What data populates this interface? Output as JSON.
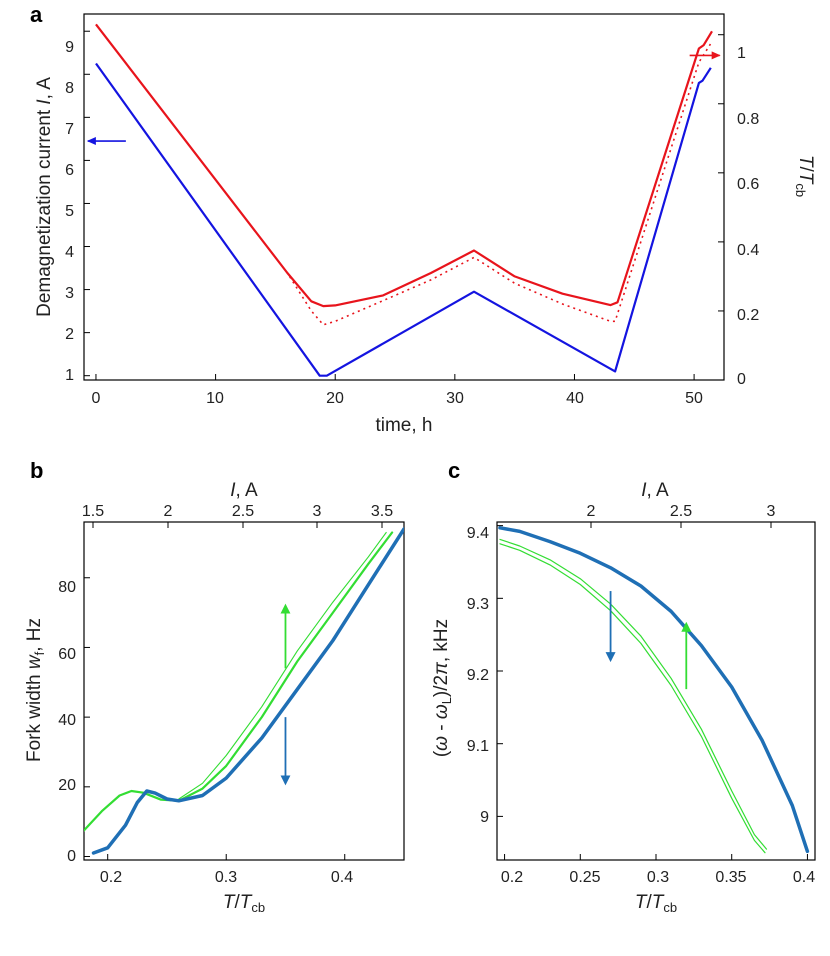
{
  "panels": {
    "a": {
      "letter": "a"
    },
    "b": {
      "letter": "b"
    },
    "c": {
      "letter": "c"
    }
  },
  "colors": {
    "red": "#e8141c",
    "blue": "#1414e0",
    "green": "#33dd33",
    "steel": "#1f6fb5"
  },
  "chart_data": [
    {
      "id": "a",
      "type": "line",
      "xlabel": "time, h",
      "ylabel_left": "Demagnetization current I, A",
      "ylabel_right": "T/Tcb",
      "xlim": [
        -1,
        52.5
      ],
      "ylim_left": [
        0.9,
        9.4
      ],
      "ylim_right": [
        0,
        1.06
      ],
      "x_ticks": [
        "0",
        "10",
        "20",
        "30",
        "40",
        "50"
      ],
      "y_ticks_left": [
        "1",
        "2",
        "3",
        "4",
        "5",
        "6",
        "7",
        "8",
        "9"
      ],
      "y_ticks_right": [
        "0",
        "0.2",
        "0.4",
        "0.6",
        "0.8",
        "1"
      ],
      "series": [
        {
          "axis": "left",
          "color": "#1414e0",
          "style": "solid",
          "x": [
            0,
            18.7,
            19.3,
            31.6,
            43.4,
            50.4,
            50.7,
            51.4
          ],
          "y": [
            8.25,
            1.0,
            1.0,
            2.95,
            1.1,
            7.8,
            7.85,
            8.15
          ]
        },
        {
          "axis": "right",
          "color": "#e8141c",
          "style": "solid",
          "x": [
            0,
            16,
            18,
            19,
            20,
            24,
            28,
            31.6,
            35,
            39,
            43,
            43.6,
            50.4,
            50.8,
            51.5
          ],
          "y": [
            1.03,
            0.31,
            0.228,
            0.214,
            0.216,
            0.245,
            0.31,
            0.375,
            0.3,
            0.25,
            0.217,
            0.225,
            0.96,
            0.97,
            1.01
          ]
        },
        {
          "axis": "right",
          "color": "#e8141c",
          "style": "dotted",
          "x": [
            0,
            16,
            18,
            19,
            20,
            24,
            28,
            31.6,
            35,
            39,
            43,
            43.4,
            50.4,
            51.5
          ],
          "y": [
            1.03,
            0.31,
            0.2,
            0.16,
            0.17,
            0.23,
            0.29,
            0.355,
            0.28,
            0.22,
            0.17,
            0.17,
            0.92,
            0.98
          ]
        }
      ],
      "annotations": [
        {
          "type": "arrow",
          "direction": "left",
          "color": "#1414e0",
          "x": 2.5,
          "y_left": 6.45
        },
        {
          "type": "arrow",
          "direction": "right",
          "color": "#e8141c",
          "x": 51.3,
          "y_right": 0.94
        }
      ]
    },
    {
      "id": "b",
      "type": "line",
      "xlabel": "T/Tcb",
      "ylabel": "Fork width wf, Hz",
      "xlabel_top": "I, A",
      "xlim": [
        0.18,
        0.45
      ],
      "ylim": [
        -1,
        96
      ],
      "x_ticks": [
        "0.2",
        "0.3",
        "0.4"
      ],
      "y_ticks": [
        "0",
        "20",
        "40",
        "60",
        "80"
      ],
      "x_ticks_top": [
        "1.5",
        "2",
        "2.5",
        "3",
        "3.5"
      ],
      "series": [
        {
          "color": "#33dd33",
          "width": 2.2,
          "x": [
            0.18,
            0.195,
            0.21,
            0.22,
            0.23,
            0.245,
            0.26,
            0.28,
            0.3,
            0.33,
            0.36,
            0.39,
            0.42,
            0.44
          ],
          "y": [
            7.5,
            13,
            17.5,
            18.8,
            18.3,
            16.3,
            16,
            19.5,
            26,
            40,
            56,
            70,
            84,
            93
          ]
        },
        {
          "color": "#33dd33",
          "width": 1.1,
          "x": [
            0.26,
            0.28,
            0.3,
            0.33,
            0.36,
            0.39,
            0.42,
            0.435
          ],
          "y": [
            16.5,
            21,
            29,
            43,
            59,
            73,
            86,
            93
          ]
        },
        {
          "color": "#1f6fb5",
          "width": 3.5,
          "x": [
            0.188,
            0.2,
            0.215,
            0.225,
            0.233,
            0.24,
            0.25,
            0.26,
            0.28,
            0.3,
            0.33,
            0.36,
            0.39,
            0.42,
            0.45
          ],
          "y": [
            1,
            2.5,
            9,
            15.5,
            18.8,
            18.2,
            16.5,
            16,
            17.5,
            22.5,
            34,
            48,
            62,
            78,
            94
          ]
        }
      ],
      "annotations": [
        {
          "type": "arrow",
          "direction": "up",
          "color": "#33dd33",
          "x": 0.35,
          "y_from": 54,
          "y_to": 72
        },
        {
          "type": "arrow",
          "direction": "down",
          "color": "#1f6fb5",
          "x": 0.35,
          "y_from": 40,
          "y_to": 21
        }
      ]
    },
    {
      "id": "c",
      "type": "line",
      "xlabel": "T/Tcb",
      "ylabel": "(ω - ωL)/2π, kHz",
      "xlabel_top": "I, A",
      "xlim": [
        0.195,
        0.405
      ],
      "ylim": [
        8.94,
        9.405
      ],
      "x_ticks": [
        "0.2",
        "0.25",
        "0.3",
        "0.35",
        "0.4"
      ],
      "y_ticks": [
        "9",
        "9.1",
        "9.2",
        "9.3",
        "9.4"
      ],
      "x_ticks_top": [
        "2",
        "2.5",
        "3"
      ],
      "series": [
        {
          "color": "#1f6fb5",
          "width": 3.5,
          "x": [
            0.197,
            0.21,
            0.23,
            0.25,
            0.27,
            0.29,
            0.31,
            0.33,
            0.35,
            0.37,
            0.39,
            0.4
          ],
          "y": [
            9.397,
            9.392,
            9.378,
            9.362,
            9.342,
            9.317,
            9.282,
            9.235,
            9.178,
            9.105,
            9.015,
            8.952
          ]
        },
        {
          "color": "#33dd33",
          "width": 1.2,
          "x": [
            0.197,
            0.21,
            0.23,
            0.25,
            0.27,
            0.29,
            0.31,
            0.33,
            0.35,
            0.365,
            0.373
          ],
          "y": [
            9.381,
            9.372,
            9.353,
            9.327,
            9.292,
            9.248,
            9.19,
            9.12,
            9.035,
            8.975,
            8.955
          ]
        },
        {
          "color": "#33dd33",
          "width": 1.2,
          "x": [
            0.197,
            0.21,
            0.23,
            0.25,
            0.27,
            0.29,
            0.31,
            0.33,
            0.35,
            0.365,
            0.372
          ],
          "y": [
            9.375,
            9.366,
            9.346,
            9.319,
            9.283,
            9.238,
            9.18,
            9.11,
            9.025,
            8.967,
            8.95
          ]
        }
      ],
      "annotations": [
        {
          "type": "arrow",
          "direction": "down",
          "color": "#1f6fb5",
          "x": 0.27,
          "y_from": 9.31,
          "y_to": 9.215
        },
        {
          "type": "arrow",
          "direction": "up",
          "color": "#33dd33",
          "x": 0.32,
          "y_from": 9.175,
          "y_to": 9.265
        }
      ]
    }
  ]
}
